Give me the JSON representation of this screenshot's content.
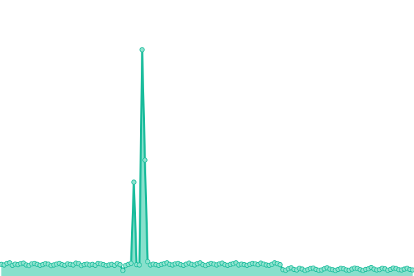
{
  "chart_data": {
    "type": "area",
    "title": "",
    "xlabel": "",
    "ylabel": "",
    "ylim": [
      0,
      100
    ],
    "grid": false,
    "legend": "none",
    "colors": {
      "line": "#1abc9c",
      "fill": "#88e0cc",
      "marker_fill": "#8fe3cf",
      "marker_stroke": "#1abc9c"
    },
    "values": [
      4.2,
      4.0,
      4.6,
      4.8,
      3.9,
      4.3,
      4.1,
      4.5,
      4.7,
      4.0,
      3.8,
      4.4,
      4.6,
      4.2,
      3.9,
      4.1,
      4.5,
      4.3,
      3.8,
      4.0,
      4.3,
      4.6,
      4.1,
      3.9,
      4.4,
      4.2,
      4.0,
      4.7,
      4.5,
      3.8,
      4.1,
      4.3,
      4.0,
      4.2,
      3.9,
      4.6,
      4.4,
      4.1,
      3.8,
      4.0,
      4.2,
      3.9,
      4.5,
      4.1,
      2.0,
      3.8,
      4.2,
      4.6,
      34,
      4.1,
      4.0,
      82,
      42,
      5.2,
      4.0,
      4.3,
      4.1,
      3.9,
      4.2,
      4.5,
      4.8,
      4.2,
      4.0,
      4.4,
      4.6,
      4.1,
      3.9,
      4.3,
      4.7,
      4.2,
      4.0,
      4.5,
      4.8,
      4.1,
      3.8,
      4.2,
      4.6,
      4.3,
      4.0,
      4.4,
      4.7,
      4.1,
      3.9,
      4.2,
      4.5,
      4.8,
      4.0,
      4.3,
      4.1,
      3.9,
      4.2,
      4.6,
      4.4,
      4.1,
      4.7,
      4.3,
      4.0,
      3.9,
      4.2,
      4.8,
      4.5,
      4.1,
      2.3,
      2.1,
      2.6,
      3.0,
      2.4,
      2.2,
      2.8,
      2.5,
      2.0,
      2.3,
      2.7,
      2.9,
      2.4,
      2.1,
      2.2,
      2.6,
      3.0,
      2.5,
      2.3,
      2.0,
      2.4,
      2.8,
      2.6,
      2.2,
      2.1,
      2.5,
      2.9,
      2.7,
      2.3,
      2.0,
      2.4,
      2.6,
      3.1,
      2.5,
      2.2,
      2.3,
      2.8,
      2.6,
      2.1,
      2.4,
      2.9,
      2.7,
      2.3,
      2.2,
      2.5,
      2.8,
      2.4,
      2.2
    ]
  }
}
